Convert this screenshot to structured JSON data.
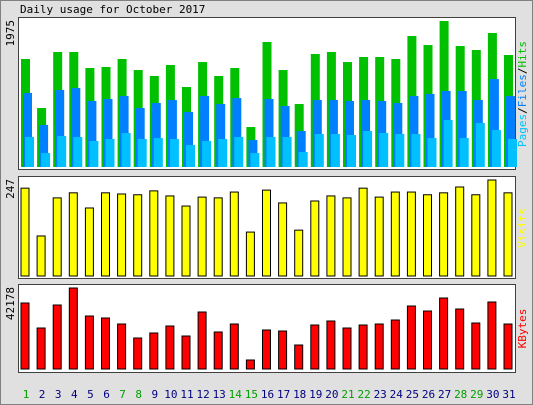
{
  "chart_data": [
    {
      "type": "bar",
      "title": "Daily usage for October 2017",
      "legend_separator": "/",
      "ylim": [
        0,
        1975
      ],
      "yticks": [
        1975
      ],
      "series": [
        {
          "name": "Hits",
          "color": "#00c000",
          "values": [
            1461,
            798,
            1556,
            1556,
            1339,
            1353,
            1461,
            1312,
            1231,
            1380,
            1082,
            1420,
            1231,
            1339,
            541,
            1691,
            1312,
            852,
            1529,
            1556,
            1420,
            1488,
            1488,
            1461,
            1772,
            1650,
            1975,
            1637,
            1583,
            1813,
            1515
          ]
        },
        {
          "name": "Files",
          "color": "#0080ff",
          "values": [
            1001,
            568,
            1042,
            1069,
            893,
            920,
            960,
            798,
            866,
            906,
            744,
            960,
            852,
            933,
            365,
            920,
            825,
            487,
            906,
            906,
            893,
            906,
            893,
            866,
            960,
            988,
            1028,
            1028,
            906,
            1190,
            960
          ]
        },
        {
          "name": "Pages",
          "color": "#00c0ff",
          "values": [
            406,
            189,
            419,
            406,
            352,
            379,
            460,
            379,
            392,
            379,
            298,
            352,
            379,
            406,
            189,
            406,
            406,
            203,
            446,
            446,
            433,
            487,
            460,
            446,
            446,
            392,
            636,
            392,
            595,
            501,
            379
          ]
        }
      ]
    },
    {
      "type": "bar",
      "ylim": [
        0,
        247
      ],
      "yticks": [
        247
      ],
      "series": [
        {
          "name": "Visits",
          "color": "#ffff00",
          "values": [
            226,
            103,
            201,
            214,
            175,
            214,
            211,
            209,
            219,
            206,
            180,
            203,
            201,
            216,
            113,
            221,
            188,
            118,
            193,
            206,
            201,
            226,
            203,
            216,
            216,
            209,
            214,
            229,
            209,
            247,
            214
          ]
        }
      ]
    },
    {
      "type": "bar",
      "ylim": [
        0,
        42178
      ],
      "yticks": [
        42178
      ],
      "categories": [
        "1",
        "2",
        "3",
        "4",
        "5",
        "6",
        "7",
        "8",
        "9",
        "10",
        "11",
        "12",
        "13",
        "14",
        "15",
        "16",
        "17",
        "18",
        "19",
        "20",
        "21",
        "22",
        "23",
        "24",
        "25",
        "26",
        "27",
        "28",
        "29",
        "30",
        "31"
      ],
      "category_colors": [
        "#00a000",
        "#000080",
        "#000080",
        "#000080",
        "#000080",
        "#000080",
        "#00a000",
        "#00a000",
        "#000080",
        "#000080",
        "#000080",
        "#000080",
        "#000080",
        "#00a000",
        "#00a000",
        "#000080",
        "#000080",
        "#000080",
        "#000080",
        "#000080",
        "#00a000",
        "#00a000",
        "#000080",
        "#000080",
        "#000080",
        "#000080",
        "#000080",
        "#00a000",
        "#00a000",
        "#000080",
        "#000080"
      ],
      "series": [
        {
          "name": "KBytes",
          "color": "#ff0000",
          "values": [
            34367,
            21349,
            33326,
            42178,
            27598,
            26557,
            23432,
            16142,
            18746,
            22391,
            17184,
            29681,
            19267,
            23432,
            4686,
            20308,
            19787,
            12497,
            22912,
            24994,
            21349,
            22912,
            23432,
            25515,
            32805,
            30201,
            36970,
            31243,
            23953,
            34888,
            23432
          ]
        }
      ]
    }
  ]
}
